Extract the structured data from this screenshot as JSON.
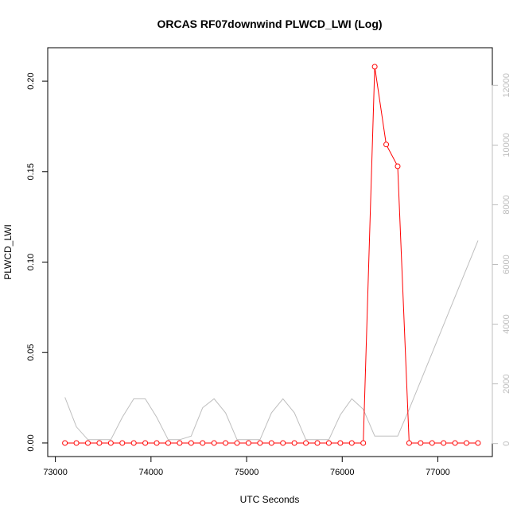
{
  "chart_data": {
    "type": "line",
    "title": "ORCAS RF07downwind PLWCD_LWI (Log)",
    "xlabel": "UTC Seconds",
    "ylabel": "PLWCD_LWI",
    "xlim": [
      72920,
      77570
    ],
    "ylim": [
      -0.0075,
      0.2185
    ],
    "y2lim": [
      -435,
      13260
    ],
    "x_ticks": [
      "73000",
      "74000",
      "75000",
      "76000",
      "77000"
    ],
    "y_ticks": [
      "0.00",
      "0.05",
      "0.10",
      "0.15",
      "0.20"
    ],
    "y2_ticks": [
      "0",
      "2000",
      "4000",
      "6000",
      "8000",
      "10000",
      "12000"
    ],
    "grid": false,
    "colors": {
      "primary": "#ff0000",
      "secondary": "#bebebe",
      "axes": "#000000",
      "axis2": "#bdbdbd"
    },
    "series": [
      {
        "axis": "left",
        "style": "line-with-circles",
        "x": [
          73100,
          73220,
          73340,
          73460,
          73580,
          73700,
          73820,
          73940,
          74060,
          74180,
          74300,
          74420,
          74540,
          74660,
          74780,
          74900,
          75020,
          75140,
          75260,
          75380,
          75500,
          75620,
          75740,
          75860,
          75980,
          76100,
          76220,
          76340,
          76460,
          76580,
          76700,
          76820,
          76940,
          77060,
          77180,
          77300,
          77420
        ],
        "y": [
          0,
          0,
          0,
          0,
          0,
          0,
          0,
          0,
          0,
          0,
          0,
          0,
          0,
          0,
          0,
          0,
          0,
          0,
          0,
          0,
          0,
          0,
          0,
          0,
          0,
          0,
          0,
          0.208,
          0.165,
          0.153,
          0,
          0,
          0,
          0,
          0,
          0,
          0
        ]
      },
      {
        "axis": "right",
        "style": "line",
        "x": [
          73100,
          73220,
          73340,
          73460,
          73580,
          73700,
          73820,
          73940,
          74060,
          74180,
          74300,
          74420,
          74540,
          74660,
          74780,
          74900,
          75020,
          75140,
          75260,
          75380,
          75500,
          75620,
          75740,
          75860,
          75980,
          76100,
          76220,
          76340,
          76460,
          76580,
          76700,
          77420
        ],
        "y": [
          1550,
          560,
          130,
          130,
          130,
          880,
          1500,
          1500,
          880,
          130,
          130,
          250,
          1200,
          1500,
          1030,
          130,
          130,
          130,
          1030,
          1500,
          1030,
          130,
          130,
          130,
          960,
          1500,
          1150,
          250,
          250,
          250,
          1150,
          6800
        ]
      }
    ]
  }
}
